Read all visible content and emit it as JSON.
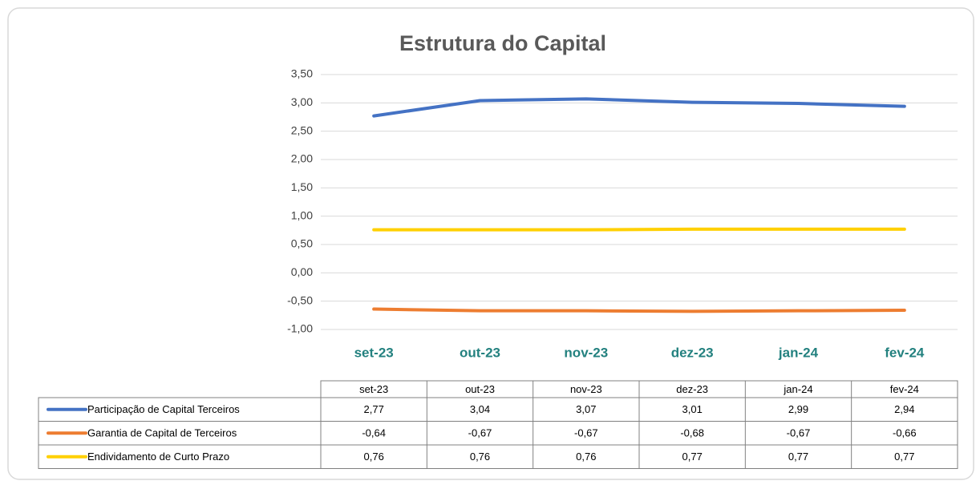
{
  "chart_data": {
    "type": "line",
    "title": "Estrutura do Capital",
    "categories": [
      "set-23",
      "out-23",
      "nov-23",
      "dez-23",
      "jan-24",
      "fev-24"
    ],
    "series": [
      {
        "name": "Participação de Capital Terceiros",
        "color": "#4472c4",
        "values": [
          2.77,
          3.04,
          3.07,
          3.01,
          2.99,
          2.94
        ],
        "value_labels": [
          "2,77",
          "3,04",
          "3,07",
          "3,01",
          "2,99",
          "2,94"
        ]
      },
      {
        "name": "Garantia de Capital de Terceiros",
        "color": "#ed7d31",
        "values": [
          -0.64,
          -0.67,
          -0.67,
          -0.68,
          -0.67,
          -0.66
        ],
        "value_labels": [
          "-0,64",
          "-0,67",
          "-0,67",
          "-0,68",
          "-0,67",
          "-0,66"
        ]
      },
      {
        "name": "Endividamento de Curto Prazo",
        "color": "#ffd000",
        "values": [
          0.76,
          0.76,
          0.76,
          0.77,
          0.77,
          0.77
        ],
        "value_labels": [
          "0,76",
          "0,76",
          "0,76",
          "0,77",
          "0,77",
          "0,77"
        ]
      }
    ],
    "ylim": [
      -1,
      3.5
    ],
    "yticks": [
      {
        "value": -1,
        "label": "-1,00"
      },
      {
        "value": -0.5,
        "label": "-0,50"
      },
      {
        "value": 0,
        "label": "0,00"
      },
      {
        "value": 0.5,
        "label": "0,50"
      },
      {
        "value": 1,
        "label": "1,00"
      },
      {
        "value": 1.5,
        "label": "1,50"
      },
      {
        "value": 2,
        "label": "2,00"
      },
      {
        "value": 2.5,
        "label": "2,50"
      },
      {
        "value": 3,
        "label": "3,00"
      },
      {
        "value": 3.5,
        "label": "3,50"
      }
    ],
    "grid": true
  }
}
